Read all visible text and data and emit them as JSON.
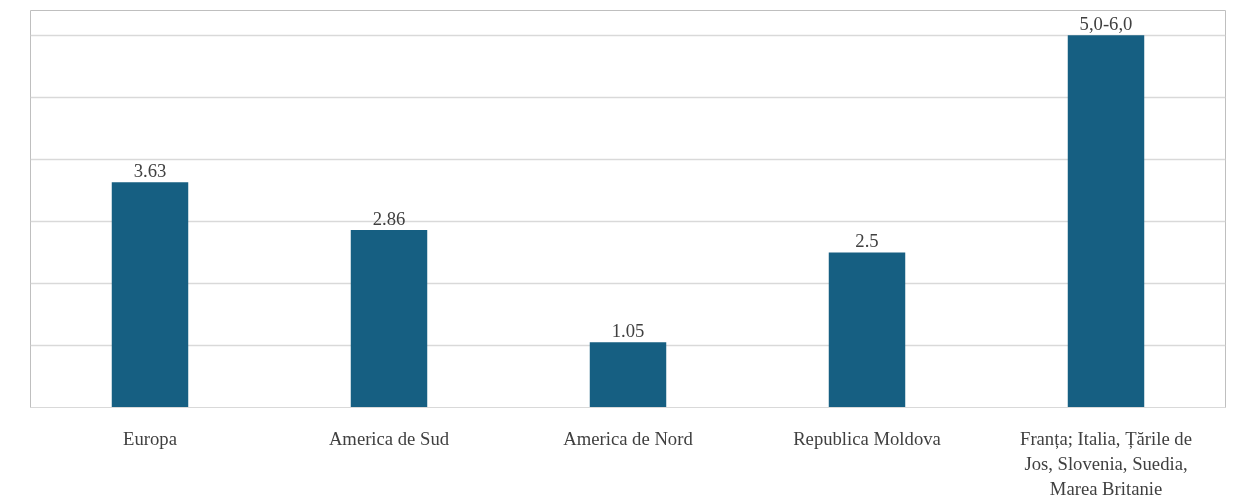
{
  "chart_data": {
    "type": "bar",
    "categories": [
      "Europa",
      "America de Sud",
      "America de Nord",
      "Republica Moldova",
      "Franța; Italia, Țările de Jos, Slovenia, Suedia, Marea Britanie"
    ],
    "values": [
      3.63,
      2.86,
      1.05,
      2.5,
      6.0
    ],
    "value_labels": [
      "3.63",
      "2.86",
      "1.05",
      "2.5",
      "5,0-6,0"
    ],
    "color": "#165f82",
    "ylim": [
      0,
      6.4
    ],
    "yticks": [
      {
        "value": 0,
        "label": null
      },
      {
        "value": 1,
        "label": null
      },
      {
        "value": 2,
        "label": null
      },
      {
        "value": 3,
        "label": null
      },
      {
        "value": 4,
        "label": null
      },
      {
        "value": 5,
        "label": null
      },
      {
        "value": 6,
        "label": null
      }
    ],
    "grid": "y",
    "tick_labels": "x"
  }
}
